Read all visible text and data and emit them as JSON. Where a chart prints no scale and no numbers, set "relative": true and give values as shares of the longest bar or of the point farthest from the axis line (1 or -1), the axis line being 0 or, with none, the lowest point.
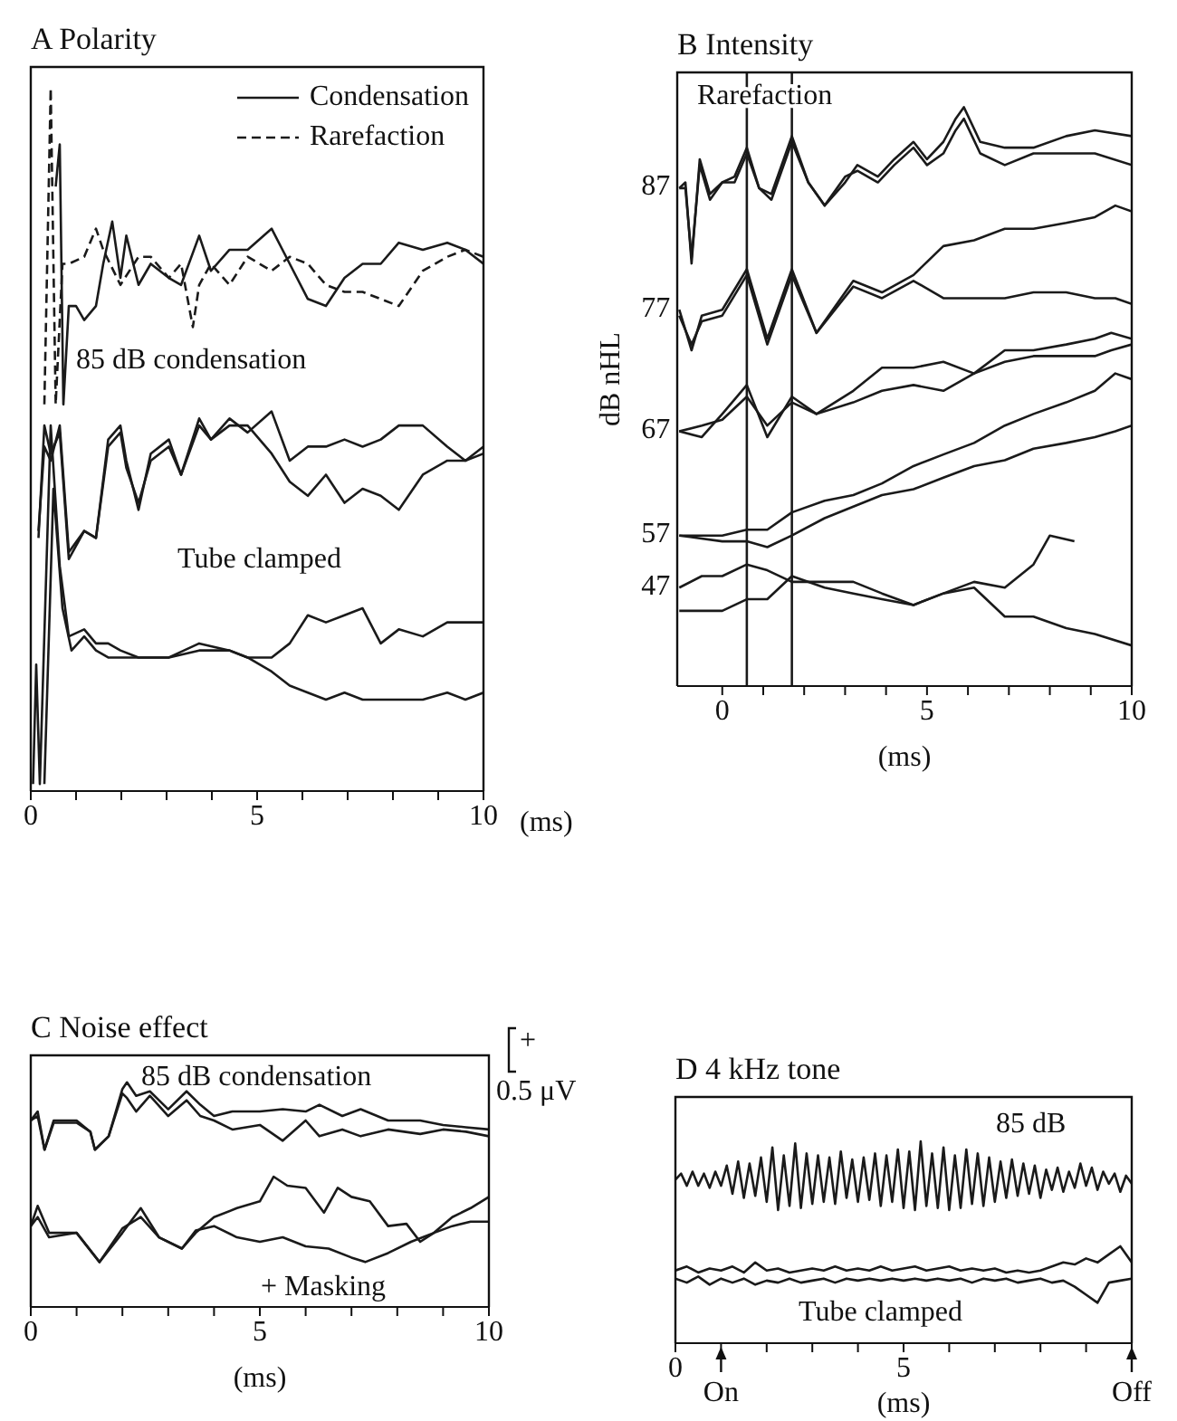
{
  "chart_data": [
    {
      "type": "line",
      "title": "A Polarity",
      "xlabel": "(ms)",
      "relative": true,
      "legend": "top right",
      "xlim": [
        0,
        10
      ],
      "xticks": [
        0,
        {
          "value": 1,
          "label": null
        },
        {
          "value": 2,
          "label": null
        },
        {
          "value": 3,
          "label": null
        },
        {
          "value": 4,
          "label": null
        },
        5,
        {
          "value": 6,
          "label": null
        },
        {
          "value": 7,
          "label": null
        },
        {
          "value": 8,
          "label": null
        },
        {
          "value": 9,
          "label": null
        },
        10
      ],
      "annotations": [
        "85 dB condensation",
        "Tube clamped"
      ],
      "series": [
        {
          "name": "Condensation",
          "color": "#1a1a1a",
          "line_style": "solid",
          "x": [
            0.55,
            0.64,
            0.72,
            0.84,
            1.0,
            1.18,
            1.44,
            1.6,
            1.8,
            1.98,
            2.11,
            2.38,
            2.65,
            3.05,
            3.32,
            3.72,
            3.98,
            4.39,
            4.79,
            5.32,
            5.72,
            6.12,
            6.52,
            6.93,
            7.33,
            7.73,
            8.13,
            8.66,
            9.2,
            9.6,
            10
          ],
          "values": [
            0.86,
            0.92,
            0.55,
            0.69,
            0.69,
            0.67,
            0.69,
            0.75,
            0.81,
            0.73,
            0.79,
            0.72,
            0.75,
            0.73,
            0.72,
            0.79,
            0.74,
            0.77,
            0.77,
            0.8,
            0.75,
            0.7,
            0.69,
            0.73,
            0.75,
            0.75,
            0.78,
            0.77,
            0.78,
            0.77,
            0.75
          ]
        },
        {
          "name": "Rarefaction",
          "color": "#1a1a1a",
          "line_style": "dashed",
          "x": [
            0.3,
            0.44,
            0.55,
            0.7,
            0.84,
            1.18,
            1.44,
            1.6,
            1.98,
            2.38,
            2.65,
            3.05,
            3.32,
            3.58,
            3.72,
            3.98,
            4.39,
            4.79,
            5.32,
            5.72,
            6.12,
            6.52,
            6.93,
            7.33,
            7.73,
            8.13,
            8.66,
            9.2,
            9.6,
            10
          ],
          "values": [
            0.55,
            1.0,
            0.55,
            0.75,
            0.75,
            0.76,
            0.8,
            0.77,
            0.72,
            0.76,
            0.76,
            0.73,
            0.75,
            0.66,
            0.72,
            0.75,
            0.72,
            0.76,
            0.74,
            0.76,
            0.75,
            0.72,
            0.71,
            0.71,
            0.7,
            0.69,
            0.74,
            0.76,
            0.77,
            0.76
          ]
        },
        {
          "color": "#1a1a1a",
          "x": [
            0.17,
            0.3,
            0.44,
            0.64,
            0.84,
            1.18,
            1.44,
            1.71,
            1.98,
            2.11,
            2.38,
            2.65,
            3.05,
            3.32,
            3.72,
            3.98,
            4.39,
            4.79,
            5.32,
            5.72,
            6.12,
            6.52,
            6.93,
            7.33,
            7.73,
            8.13,
            8.66,
            9.2,
            9.6,
            10
          ],
          "values": [
            0.36,
            0.52,
            0.48,
            0.51,
            0.33,
            0.37,
            0.36,
            0.5,
            0.52,
            0.47,
            0.4,
            0.48,
            0.5,
            0.45,
            0.53,
            0.5,
            0.53,
            0.51,
            0.54,
            0.47,
            0.49,
            0.49,
            0.5,
            0.49,
            0.5,
            0.52,
            0.52,
            0.49,
            0.47,
            0.49
          ]
        },
        {
          "color": "#1a1a1a",
          "x": [
            0.17,
            0.3,
            0.44,
            0.64,
            0.84,
            1.18,
            1.44,
            1.71,
            1.98,
            2.11,
            2.38,
            2.65,
            3.05,
            3.32,
            3.72,
            3.98,
            4.39,
            4.79,
            5.32,
            5.72,
            6.12,
            6.52,
            6.93,
            7.33,
            7.73,
            8.13,
            8.66,
            9.2,
            9.6,
            10
          ],
          "values": [
            0.37,
            0.49,
            0.47,
            0.52,
            0.34,
            0.37,
            0.36,
            0.49,
            0.51,
            0.46,
            0.41,
            0.47,
            0.49,
            0.45,
            0.52,
            0.5,
            0.52,
            0.52,
            0.48,
            0.44,
            0.42,
            0.45,
            0.41,
            0.43,
            0.42,
            0.4,
            0.45,
            0.47,
            0.47,
            0.48
          ]
        },
        {
          "color": "#1a1a1a",
          "x": [
            0.05,
            0.12,
            0.2,
            0.44,
            0.64,
            0.84,
            1.18,
            1.44,
            1.71,
            1.98,
            2.38,
            2.65,
            3.05,
            3.72,
            4.39,
            4.79,
            5.32,
            5.72,
            6.12,
            6.52,
            6.93,
            7.33,
            7.73,
            8.13,
            8.66,
            9.2,
            9.6,
            10
          ],
          "values": [
            0.01,
            0.18,
            0.01,
            0.52,
            0.32,
            0.22,
            0.23,
            0.21,
            0.21,
            0.2,
            0.19,
            0.19,
            0.19,
            0.21,
            0.2,
            0.19,
            0.19,
            0.21,
            0.25,
            0.24,
            0.25,
            0.26,
            0.21,
            0.23,
            0.22,
            0.24,
            0.24,
            0.24
          ]
        },
        {
          "color": "#1a1a1a",
          "x": [
            0.3,
            0.5,
            0.7,
            0.9,
            1.18,
            1.44,
            1.71,
            1.98,
            2.38,
            3.05,
            3.72,
            4.39,
            4.79,
            5.32,
            5.72,
            6.12,
            6.52,
            6.93,
            7.33,
            7.73,
            8.13,
            8.66,
            9.2,
            9.6,
            10
          ],
          "values": [
            0.01,
            0.43,
            0.26,
            0.2,
            0.22,
            0.2,
            0.19,
            0.19,
            0.19,
            0.19,
            0.2,
            0.2,
            0.19,
            0.17,
            0.15,
            0.14,
            0.13,
            0.14,
            0.13,
            0.13,
            0.13,
            0.13,
            0.14,
            0.13,
            0.14
          ]
        }
      ]
    },
    {
      "type": "line",
      "title": "B Intensity",
      "xlabel": "(ms)",
      "ylabel": "dB nHL",
      "relative": true,
      "xlim": [
        -1.1,
        10
      ],
      "xticks": [
        0,
        {
          "value": 1,
          "label": null
        },
        {
          "value": 2,
          "label": null
        },
        {
          "value": 3,
          "label": null
        },
        {
          "value": 4,
          "label": null
        },
        5,
        {
          "value": 6,
          "label": null
        },
        {
          "value": 7,
          "label": null
        },
        {
          "value": 8,
          "label": null
        },
        {
          "value": 9,
          "label": null
        },
        10
      ],
      "ref_lines": [
        {
          "axis": "x",
          "value": 0.6,
          "color": "#1a1a1a"
        },
        {
          "axis": "x",
          "value": 1.7,
          "color": "#1a1a1a"
        }
      ],
      "annotations": [
        "Rarefaction"
      ],
      "series": [
        {
          "name": "87",
          "color": "#1a1a1a",
          "x": [
            -1.05,
            -0.9,
            -0.75,
            -0.55,
            -0.3,
            0,
            0.3,
            0.6,
            0.9,
            1.2,
            1.7,
            2.1,
            2.5,
            3.0,
            3.3,
            3.8,
            4.2,
            4.67,
            5.0,
            5.4,
            5.7,
            5.9,
            6.3,
            6.9,
            7.6,
            8.4,
            9.1,
            10
          ],
          "values": [
            0.86,
            0.87,
            0.73,
            0.91,
            0.85,
            0.87,
            0.88,
            0.93,
            0.86,
            0.85,
            0.95,
            0.87,
            0.83,
            0.87,
            0.9,
            0.88,
            0.91,
            0.94,
            0.91,
            0.94,
            0.98,
            1.0,
            0.94,
            0.93,
            0.93,
            0.95,
            0.96,
            0.95
          ]
        },
        {
          "color": "#1a1a1a",
          "x": [
            -1.05,
            -0.9,
            -0.75,
            -0.55,
            -0.3,
            0,
            0.3,
            0.6,
            0.9,
            1.2,
            1.7,
            2.1,
            2.5,
            3.0,
            3.3,
            3.8,
            4.2,
            4.67,
            5.0,
            5.4,
            5.7,
            5.9,
            6.3,
            6.9,
            7.6,
            8.4,
            9.1,
            10
          ],
          "values": [
            0.86,
            0.86,
            0.74,
            0.9,
            0.84,
            0.87,
            0.87,
            0.92,
            0.86,
            0.84,
            0.94,
            0.87,
            0.83,
            0.88,
            0.89,
            0.87,
            0.9,
            0.93,
            0.9,
            0.92,
            0.96,
            0.98,
            0.92,
            0.9,
            0.92,
            0.92,
            0.92,
            0.9
          ]
        },
        {
          "name": "77",
          "color": "#1a1a1a",
          "x": [
            -1.05,
            -0.75,
            -0.5,
            0,
            0.6,
            1.1,
            1.7,
            2.3,
            3.2,
            3.9,
            4.67,
            5.4,
            6.15,
            6.9,
            7.6,
            8.4,
            9.1,
            9.6,
            10
          ],
          "values": [
            0.65,
            0.58,
            0.64,
            0.65,
            0.72,
            0.6,
            0.72,
            0.61,
            0.7,
            0.68,
            0.71,
            0.76,
            0.77,
            0.79,
            0.79,
            0.8,
            0.81,
            0.83,
            0.82
          ]
        },
        {
          "color": "#1a1a1a",
          "x": [
            -1.05,
            -0.75,
            -0.5,
            0,
            0.6,
            1.1,
            1.7,
            2.3,
            3.2,
            3.9,
            4.67,
            5.4,
            6.15,
            6.9,
            7.6,
            8.4,
            9.1,
            9.6,
            10
          ],
          "values": [
            0.64,
            0.59,
            0.63,
            0.64,
            0.71,
            0.59,
            0.71,
            0.61,
            0.69,
            0.67,
            0.7,
            0.67,
            0.67,
            0.67,
            0.68,
            0.68,
            0.67,
            0.67,
            0.66
          ]
        },
        {
          "name": "67",
          "color": "#1a1a1a",
          "x": [
            -1.05,
            -0.5,
            0,
            0.6,
            1.1,
            1.7,
            2.3,
            3.2,
            3.9,
            4.67,
            5.4,
            6.15,
            6.9,
            7.6,
            8.4,
            9.1,
            9.5,
            10
          ],
          "values": [
            0.44,
            0.43,
            0.47,
            0.52,
            0.43,
            0.5,
            0.47,
            0.51,
            0.55,
            0.55,
            0.56,
            0.54,
            0.58,
            0.58,
            0.59,
            0.6,
            0.61,
            0.6
          ]
        },
        {
          "color": "#1a1a1a",
          "x": [
            -1.05,
            -0.5,
            0,
            0.6,
            1.1,
            1.7,
            2.3,
            3.2,
            3.9,
            4.67,
            5.4,
            6.15,
            6.9,
            7.6,
            8.4,
            9.1,
            9.5,
            10
          ],
          "values": [
            0.44,
            0.45,
            0.46,
            0.5,
            0.45,
            0.49,
            0.47,
            0.49,
            0.51,
            0.52,
            0.51,
            0.54,
            0.56,
            0.57,
            0.57,
            0.57,
            0.58,
            0.59
          ]
        },
        {
          "name": "57",
          "color": "#1a1a1a",
          "x": [
            -1.05,
            0,
            0.6,
            1.1,
            1.7,
            2.5,
            3.2,
            3.9,
            4.67,
            5.4,
            6.15,
            6.9,
            7.6,
            8.4,
            9.1,
            9.6,
            10
          ],
          "values": [
            0.26,
            0.26,
            0.27,
            0.27,
            0.3,
            0.32,
            0.33,
            0.35,
            0.38,
            0.4,
            0.42,
            0.45,
            0.47,
            0.49,
            0.51,
            0.54,
            0.53
          ]
        },
        {
          "color": "#1a1a1a",
          "x": [
            -1.05,
            0,
            0.6,
            1.1,
            1.7,
            2.5,
            3.2,
            3.9,
            4.67,
            5.4,
            6.15,
            6.9,
            7.6,
            8.4,
            9.1,
            9.6,
            10
          ],
          "values": [
            0.26,
            0.25,
            0.25,
            0.24,
            0.26,
            0.29,
            0.31,
            0.33,
            0.34,
            0.36,
            0.38,
            0.39,
            0.41,
            0.42,
            0.43,
            0.44,
            0.45
          ]
        },
        {
          "name": "47",
          "color": "#1a1a1a",
          "x": [
            -1.05,
            -0.5,
            0,
            0.6,
            1.1,
            1.7,
            2.5,
            3.2,
            3.9,
            4.67,
            5.4,
            6.15,
            6.9,
            7.6,
            8.0,
            8.6
          ],
          "values": [
            0.17,
            0.19,
            0.19,
            0.21,
            0.2,
            0.18,
            0.18,
            0.18,
            0.16,
            0.14,
            0.16,
            0.18,
            0.17,
            0.21,
            0.26,
            0.25
          ]
        },
        {
          "color": "#1a1a1a",
          "x": [
            -1.05,
            0,
            0.6,
            1.1,
            1.7,
            2.5,
            3.2,
            3.9,
            4.67,
            5.4,
            6.15,
            6.9,
            7.6,
            8.4,
            9.1,
            10
          ],
          "values": [
            0.13,
            0.13,
            0.15,
            0.15,
            0.19,
            0.17,
            0.16,
            0.15,
            0.14,
            0.16,
            0.17,
            0.12,
            0.12,
            0.1,
            0.09,
            0.07
          ]
        }
      ]
    },
    {
      "type": "line",
      "title": "C Noise effect",
      "xlabel": "(ms)",
      "relative": true,
      "xlim": [
        0,
        10
      ],
      "xticks": [
        0,
        {
          "value": 1,
          "label": null
        },
        {
          "value": 2,
          "label": null
        },
        {
          "value": 3,
          "label": null
        },
        {
          "value": 4,
          "label": null
        },
        5,
        {
          "value": 6,
          "label": null
        },
        {
          "value": 7,
          "label": null
        },
        {
          "value": 8,
          "label": null
        },
        {
          "value": 9,
          "label": null
        },
        10
      ],
      "annotations": [
        "85 dB condensation",
        "+ Masking",
        "+",
        "0.5 μV"
      ],
      "series": [
        {
          "color": "#1a1a1a",
          "x": [
            0,
            0.15,
            0.3,
            0.5,
            1.0,
            1.3,
            1.4,
            1.7,
            2.0,
            2.1,
            2.3,
            2.6,
            3.0,
            3.4,
            3.7,
            4.0,
            4.4,
            5.0,
            5.5,
            6.0,
            6.3,
            6.8,
            7.2,
            7.8,
            8.5,
            9.0,
            9.5,
            10
          ],
          "values": [
            0.83,
            0.87,
            0.7,
            0.83,
            0.83,
            0.78,
            0.7,
            0.76,
            0.97,
            1.0,
            0.94,
            0.96,
            0.88,
            0.96,
            0.9,
            0.85,
            0.87,
            0.87,
            0.88,
            0.87,
            0.9,
            0.85,
            0.88,
            0.83,
            0.83,
            0.81,
            0.8,
            0.79
          ]
        },
        {
          "color": "#1a1a1a",
          "x": [
            0,
            0.15,
            0.3,
            0.5,
            1.0,
            1.3,
            1.4,
            1.7,
            2.0,
            2.1,
            2.3,
            2.6,
            3.0,
            3.4,
            3.7,
            4.0,
            4.4,
            5.0,
            5.5,
            6.0,
            6.3,
            6.8,
            7.2,
            7.8,
            8.5,
            9.0,
            9.5,
            10
          ],
          "values": [
            0.83,
            0.85,
            0.7,
            0.82,
            0.82,
            0.78,
            0.7,
            0.76,
            0.95,
            0.93,
            0.87,
            0.94,
            0.85,
            0.92,
            0.85,
            0.83,
            0.79,
            0.81,
            0.74,
            0.83,
            0.76,
            0.79,
            0.76,
            0.79,
            0.77,
            0.79,
            0.78,
            0.76
          ]
        },
        {
          "color": "#1a1a1a",
          "x": [
            0,
            0.15,
            0.4,
            1.0,
            1.5,
            2.0,
            2.4,
            2.8,
            3.3,
            3.6,
            4.0,
            4.5,
            5.0,
            5.3,
            5.6,
            6.0,
            6.4,
            6.7,
            7.0,
            7.4,
            7.8,
            8.2,
            8.5,
            8.8,
            9.2,
            9.6,
            10
          ],
          "values": [
            0.36,
            0.45,
            0.33,
            0.33,
            0.2,
            0.33,
            0.44,
            0.31,
            0.26,
            0.33,
            0.4,
            0.44,
            0.47,
            0.58,
            0.54,
            0.53,
            0.42,
            0.53,
            0.49,
            0.47,
            0.36,
            0.37,
            0.29,
            0.33,
            0.4,
            0.44,
            0.49
          ]
        },
        {
          "color": "#1a1a1a",
          "x": [
            0,
            0.15,
            0.4,
            1.0,
            1.5,
            2.0,
            2.4,
            2.8,
            3.3,
            3.6,
            4.0,
            4.5,
            5.0,
            5.5,
            6.0,
            6.5,
            7.0,
            7.3,
            7.8,
            8.3,
            8.8,
            9.2,
            9.6,
            10
          ],
          "values": [
            0.36,
            0.4,
            0.31,
            0.33,
            0.2,
            0.35,
            0.4,
            0.31,
            0.26,
            0.34,
            0.36,
            0.31,
            0.29,
            0.31,
            0.27,
            0.26,
            0.22,
            0.2,
            0.24,
            0.29,
            0.33,
            0.36,
            0.38,
            0.38
          ]
        }
      ]
    },
    {
      "type": "line",
      "title": "D 4 kHz tone",
      "xlabel": "(ms)",
      "relative": true,
      "xlim": [
        0,
        10
      ],
      "xticks": [
        0,
        {
          "value": 1,
          "label": null
        },
        {
          "value": 2,
          "label": null
        },
        {
          "value": 3,
          "label": null
        },
        {
          "value": 4,
          "label": null
        },
        5,
        {
          "value": 6,
          "label": null
        },
        {
          "value": 7,
          "label": null
        },
        {
          "value": 8,
          "label": null
        },
        {
          "value": 9,
          "label": null
        },
        {
          "value": 10,
          "label": null
        }
      ],
      "annotations": [
        "85 dB",
        "Tube clamped",
        {
          "text": "On",
          "x": 1
        },
        {
          "text": "Off",
          "x": 10
        }
      ],
      "series": [
        {
          "color": "#1a1a1a",
          "x": [
            0,
            0.125,
            0.25,
            0.375,
            0.5,
            0.625,
            0.75,
            0.875,
            1,
            1.125,
            1.25,
            1.375,
            1.5,
            1.625,
            1.75,
            1.875,
            2,
            2.125,
            2.25,
            2.375,
            2.5,
            2.625,
            2.75,
            2.875,
            3,
            3.125,
            3.25,
            3.375,
            3.5,
            3.625,
            3.75,
            3.875,
            4,
            4.125,
            4.25,
            4.375,
            4.5,
            4.625,
            4.75,
            4.875,
            5,
            5.125,
            5.25,
            5.375,
            5.5,
            5.625,
            5.75,
            5.875,
            6,
            6.125,
            6.25,
            6.375,
            6.5,
            6.625,
            6.75,
            6.875,
            7,
            7.125,
            7.25,
            7.375,
            7.5,
            7.625,
            7.75,
            7.875,
            8,
            8.125,
            8.25,
            8.375,
            8.5,
            8.625,
            8.75,
            8.875,
            9,
            9.125,
            9.25,
            9.375,
            9.5,
            9.625,
            9.75,
            9.875,
            10
          ],
          "values": [
            0.81,
            0.84,
            0.78,
            0.85,
            0.78,
            0.84,
            0.77,
            0.85,
            0.78,
            0.88,
            0.74,
            0.9,
            0.72,
            0.89,
            0.73,
            0.92,
            0.7,
            0.97,
            0.66,
            0.93,
            0.68,
            0.99,
            0.67,
            0.94,
            0.69,
            0.93,
            0.7,
            0.92,
            0.69,
            0.95,
            0.72,
            0.91,
            0.7,
            0.92,
            0.71,
            0.94,
            0.68,
            0.93,
            0.7,
            0.96,
            0.67,
            0.95,
            0.66,
            1.0,
            0.68,
            0.94,
            0.67,
            0.97,
            0.66,
            0.93,
            0.67,
            0.96,
            0.69,
            0.94,
            0.68,
            0.92,
            0.7,
            0.9,
            0.72,
            0.91,
            0.73,
            0.89,
            0.74,
            0.88,
            0.72,
            0.86,
            0.76,
            0.87,
            0.75,
            0.85,
            0.77,
            0.89,
            0.78,
            0.87,
            0.76,
            0.85,
            0.79,
            0.84,
            0.75,
            0.83,
            0.79
          ]
        },
        {
          "color": "#1a1a1a",
          "x": [
            0,
            0.25,
            0.5,
            0.75,
            1,
            1.25,
            1.5,
            1.75,
            2,
            2.25,
            2.5,
            2.75,
            3,
            3.25,
            3.5,
            3.75,
            4,
            4.25,
            4.5,
            4.75,
            5,
            5.25,
            5.5,
            5.75,
            6,
            6.25,
            6.5,
            6.75,
            7,
            7.25,
            7.5,
            7.75,
            8,
            8.25,
            8.5,
            8.75,
            9,
            9.25,
            9.5,
            9.75,
            10
          ],
          "values": [
            0.36,
            0.38,
            0.35,
            0.37,
            0.36,
            0.38,
            0.35,
            0.4,
            0.36,
            0.37,
            0.35,
            0.36,
            0.37,
            0.36,
            0.38,
            0.36,
            0.37,
            0.36,
            0.38,
            0.36,
            0.37,
            0.38,
            0.36,
            0.37,
            0.38,
            0.36,
            0.37,
            0.36,
            0.37,
            0.35,
            0.36,
            0.35,
            0.36,
            0.38,
            0.4,
            0.39,
            0.42,
            0.4,
            0.44,
            0.48,
            0.4
          ]
        },
        {
          "color": "#1a1a1a",
          "x": [
            0,
            0.25,
            0.5,
            0.75,
            1,
            1.25,
            1.5,
            1.75,
            2,
            2.25,
            2.5,
            2.75,
            3,
            3.25,
            3.5,
            3.75,
            4,
            4.25,
            4.5,
            4.75,
            5,
            5.25,
            5.5,
            5.75,
            6,
            6.25,
            6.5,
            6.75,
            7,
            7.25,
            7.5,
            7.75,
            8,
            8.25,
            8.5,
            8.75,
            9,
            9.25,
            9.5,
            9.75,
            10
          ],
          "values": [
            0.32,
            0.3,
            0.33,
            0.29,
            0.32,
            0.3,
            0.32,
            0.29,
            0.31,
            0.3,
            0.32,
            0.3,
            0.31,
            0.32,
            0.3,
            0.32,
            0.31,
            0.32,
            0.31,
            0.32,
            0.31,
            0.32,
            0.31,
            0.32,
            0.31,
            0.32,
            0.3,
            0.32,
            0.31,
            0.32,
            0.3,
            0.31,
            0.32,
            0.3,
            0.31,
            0.28,
            0.24,
            0.2,
            0.3,
            0.31,
            0.32
          ]
        }
      ]
    }
  ]
}
